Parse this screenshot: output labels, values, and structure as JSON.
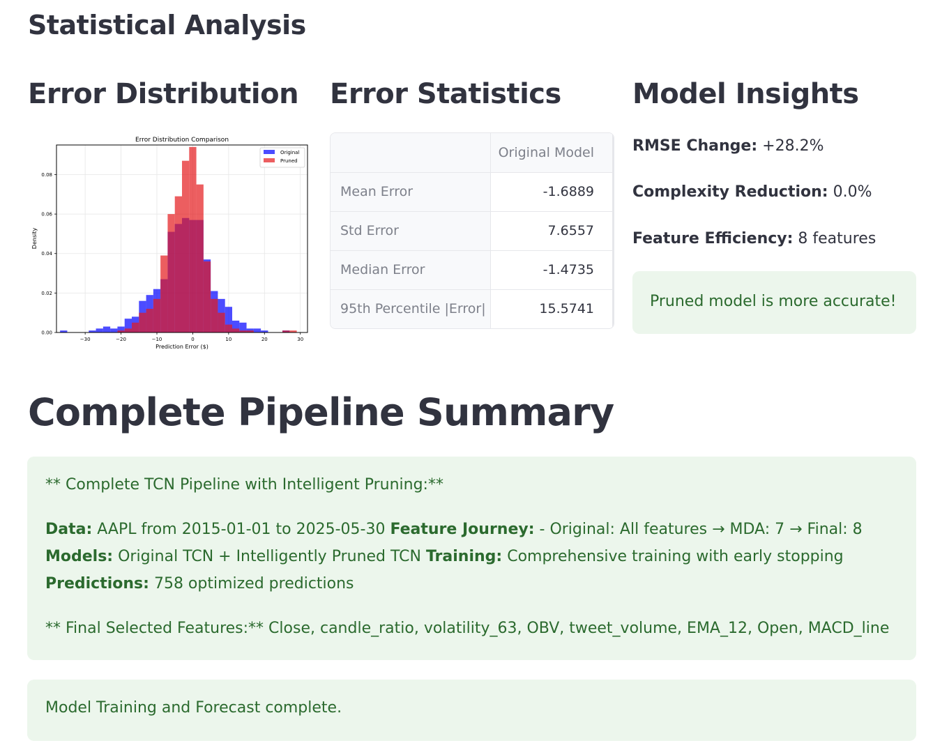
{
  "page": {
    "title": "Statistical Analysis"
  },
  "columns": {
    "error_distribution": "Error Distribution",
    "error_statistics": "Error Statistics",
    "model_insights": "Model Insights"
  },
  "chart_data": {
    "type": "histogram",
    "title": "Error Distribution Comparison",
    "xlabel": "Prediction Error ($)",
    "ylabel": "Density",
    "xlim": [
      -38,
      32
    ],
    "ylim": [
      0,
      0.095
    ],
    "xticks": [
      "−30",
      "−20",
      "−10",
      "0",
      "10",
      "20",
      "30"
    ],
    "xtick_values": [
      -30,
      -20,
      -10,
      0,
      10,
      20,
      30
    ],
    "yticks": [
      "0.00",
      "0.02",
      "0.04",
      "0.06",
      "0.08"
    ],
    "ytick_values": [
      0,
      0.02,
      0.04,
      0.06,
      0.08
    ],
    "grid": true,
    "legend_position": "top-right",
    "series": [
      {
        "name": "Original",
        "color": "#0000ff",
        "bins": [
          [
            -37,
            -35,
            0.001
          ],
          [
            -35,
            -33,
            0.0
          ],
          [
            -33,
            -31,
            0.0
          ],
          [
            -31,
            -29,
            0.0
          ],
          [
            -29,
            -27,
            0.001
          ],
          [
            -27,
            -25,
            0.002
          ],
          [
            -25,
            -23,
            0.003
          ],
          [
            -23,
            -21,
            0.002
          ],
          [
            -21,
            -19,
            0.003
          ],
          [
            -19,
            -17,
            0.007
          ],
          [
            -17,
            -15,
            0.008
          ],
          [
            -15,
            -13,
            0.016
          ],
          [
            -13,
            -11,
            0.019
          ],
          [
            -11,
            -9,
            0.022
          ],
          [
            -9,
            -7,
            0.027
          ],
          [
            -7,
            -5,
            0.051
          ],
          [
            -5,
            -3,
            0.055
          ],
          [
            -3,
            -1,
            0.058
          ],
          [
            -1,
            1,
            0.057
          ],
          [
            1,
            3,
            0.057
          ],
          [
            3,
            5,
            0.037
          ],
          [
            5,
            7,
            0.021
          ],
          [
            7,
            9,
            0.017
          ],
          [
            9,
            11,
            0.013
          ],
          [
            11,
            13,
            0.006
          ],
          [
            13,
            15,
            0.005
          ],
          [
            15,
            17,
            0.002
          ],
          [
            17,
            19,
            0.002
          ],
          [
            19,
            21,
            0.001
          ],
          [
            21,
            23,
            0.0
          ],
          [
            23,
            25,
            0.0
          ],
          [
            25,
            27,
            0.001
          ],
          [
            27,
            29,
            0.0
          ]
        ]
      },
      {
        "name": "Pruned",
        "color": "#e41a1c",
        "bins": [
          [
            -21,
            -19,
            0.001
          ],
          [
            -19,
            -17,
            0.002
          ],
          [
            -17,
            -15,
            0.005
          ],
          [
            -15,
            -13,
            0.01
          ],
          [
            -13,
            -11,
            0.012
          ],
          [
            -11,
            -9,
            0.017
          ],
          [
            -9,
            -7,
            0.039
          ],
          [
            -7,
            -5,
            0.06
          ],
          [
            -5,
            -3,
            0.069
          ],
          [
            -3,
            -1,
            0.087
          ],
          [
            -1,
            1,
            0.094
          ],
          [
            1,
            3,
            0.075
          ],
          [
            3,
            5,
            0.036
          ],
          [
            5,
            7,
            0.017
          ],
          [
            7,
            9,
            0.01
          ],
          [
            9,
            11,
            0.004
          ],
          [
            11,
            13,
            0.002
          ],
          [
            13,
            15,
            0.001
          ],
          [
            15,
            17,
            0.001
          ],
          [
            25,
            27,
            0.001
          ],
          [
            27,
            29,
            0.001
          ]
        ]
      }
    ]
  },
  "stats_table": {
    "column_header": "Original Model",
    "rows": [
      {
        "label": "Mean Error",
        "value": "-1.6889"
      },
      {
        "label": "Std Error",
        "value": "7.6557"
      },
      {
        "label": "Median Error",
        "value": "-1.4735"
      },
      {
        "label": "95th Percentile |Error|",
        "value": "15.5741"
      }
    ]
  },
  "insights": {
    "rmse_label": "RMSE Change:",
    "rmse_value": " +28.2%",
    "complexity_label": "Complexity Reduction:",
    "complexity_value": " 0.0%",
    "feature_label": "Feature Efficiency:",
    "feature_value": " 8 features",
    "success_message": "Pruned model is more accurate!"
  },
  "summary": {
    "title": "Complete Pipeline Summary",
    "heading_line": "** Complete TCN Pipeline with Intelligent Pruning:**",
    "data_label": "Data:",
    "data_text": " AAPL from 2015-01-01 to 2025-05-30 ",
    "journey_label": "Feature Journey:",
    "journey_text": " - Original: All features → MDA: 7 → Final: 8 ",
    "models_label": "Models:",
    "models_text": " Original TCN + Intelligently Pruned TCN ",
    "training_label": "Training:",
    "training_text": " Comprehensive training with early stopping ",
    "predictions_label": "Predictions:",
    "predictions_text": " 758 optimized predictions",
    "features_line": "** Final Selected Features:** Close, candle_ratio, volatility_63, OBV, tweet_volume, EMA_12, Open, MACD_line"
  },
  "status": {
    "message": "Model Training and Forecast complete."
  },
  "colors": {
    "success_bg": "#ecf6ec",
    "success_text": "#2b6a2e"
  }
}
